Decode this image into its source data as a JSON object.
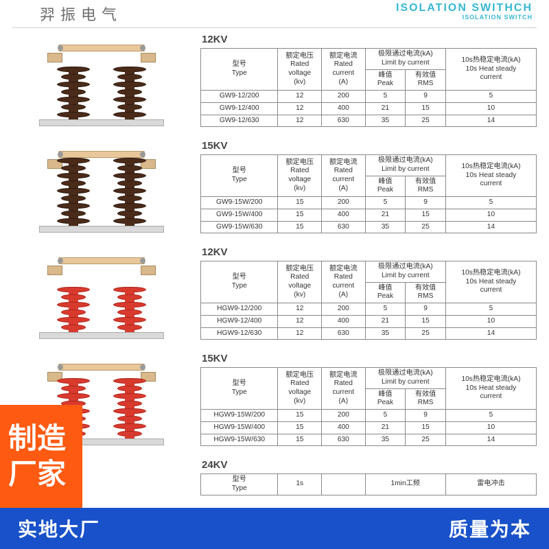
{
  "header": {
    "cn_partial": "羿振电气",
    "en_line1": "ISOLATION SWITHCH",
    "en_line2": "ISOLATION SWITCH"
  },
  "columns": {
    "type_cn": "型号",
    "type_en": "Type",
    "volt_cn": "额定电压",
    "volt_en1": "Rated",
    "volt_en2": "voltage",
    "volt_unit": "(kv)",
    "curr_cn": "额定电流",
    "curr_en1": "Rated",
    "curr_en2": "current",
    "curr_unit": "(A)",
    "limit_cn": "极限通过电流(kA)",
    "limit_en": "Limit by current",
    "peak_cn": "峰值",
    "peak_en": "Peak",
    "rms_cn": "有效值",
    "rms_en": "RMS",
    "heat_cn": "10s热稳定电流(kA)",
    "heat_en1": "10s Heat steady",
    "heat_en2": "current",
    "col24_a": "1s",
    "col24_b": "1min工频",
    "col24_c": "雷电冲击"
  },
  "sections": [
    {
      "title": "12KV",
      "insulator_color": "brown",
      "sheds": 7,
      "rows": [
        {
          "type": "GW9-12/200",
          "v": "12",
          "a": "200",
          "peak": "5",
          "rms": "9",
          "heat": "5"
        },
        {
          "type": "GW9-12/400",
          "v": "12",
          "a": "400",
          "peak": "21",
          "rms": "15",
          "heat": "10"
        },
        {
          "type": "GW9-12/630",
          "v": "12",
          "a": "630",
          "peak": "35",
          "rms": "25",
          "heat": "14"
        }
      ]
    },
    {
      "title": "15KV",
      "insulator_color": "brown",
      "sheds": 9,
      "rows": [
        {
          "type": "GW9-15W/200",
          "v": "15",
          "a": "200",
          "peak": "5",
          "rms": "9",
          "heat": "5"
        },
        {
          "type": "GW9-15W/400",
          "v": "15",
          "a": "400",
          "peak": "21",
          "rms": "15",
          "heat": "10"
        },
        {
          "type": "GW9-15W/630",
          "v": "15",
          "a": "630",
          "peak": "35",
          "rms": "25",
          "heat": "14"
        }
      ]
    },
    {
      "title": "12KV",
      "insulator_color": "red",
      "sheds": 6,
      "rows": [
        {
          "type": "HGW9-12/200",
          "v": "12",
          "a": "200",
          "peak": "5",
          "rms": "9",
          "heat": "5"
        },
        {
          "type": "HGW9-12/400",
          "v": "12",
          "a": "400",
          "peak": "21",
          "rms": "15",
          "heat": "10"
        },
        {
          "type": "HGW9-12/630",
          "v": "12",
          "a": "630",
          "peak": "35",
          "rms": "25",
          "heat": "14"
        }
      ]
    },
    {
      "title": "15KV",
      "insulator_color": "red",
      "sheds": 8,
      "rows": [
        {
          "type": "HGW9-15W/200",
          "v": "15",
          "a": "200",
          "peak": "5",
          "rms": "9",
          "heat": "5"
        },
        {
          "type": "HGW9-15W/400",
          "v": "15",
          "a": "400",
          "peak": "21",
          "rms": "15",
          "heat": "10"
        },
        {
          "type": "HGW9-15W/630",
          "v": "15",
          "a": "630",
          "peak": "35",
          "rms": "25",
          "heat": "14"
        }
      ]
    }
  ],
  "section24_title": "24KV",
  "badge": {
    "line1": "制造",
    "line2": "厂家"
  },
  "banner": {
    "left": "实地大厂",
    "right": "质量为本"
  }
}
